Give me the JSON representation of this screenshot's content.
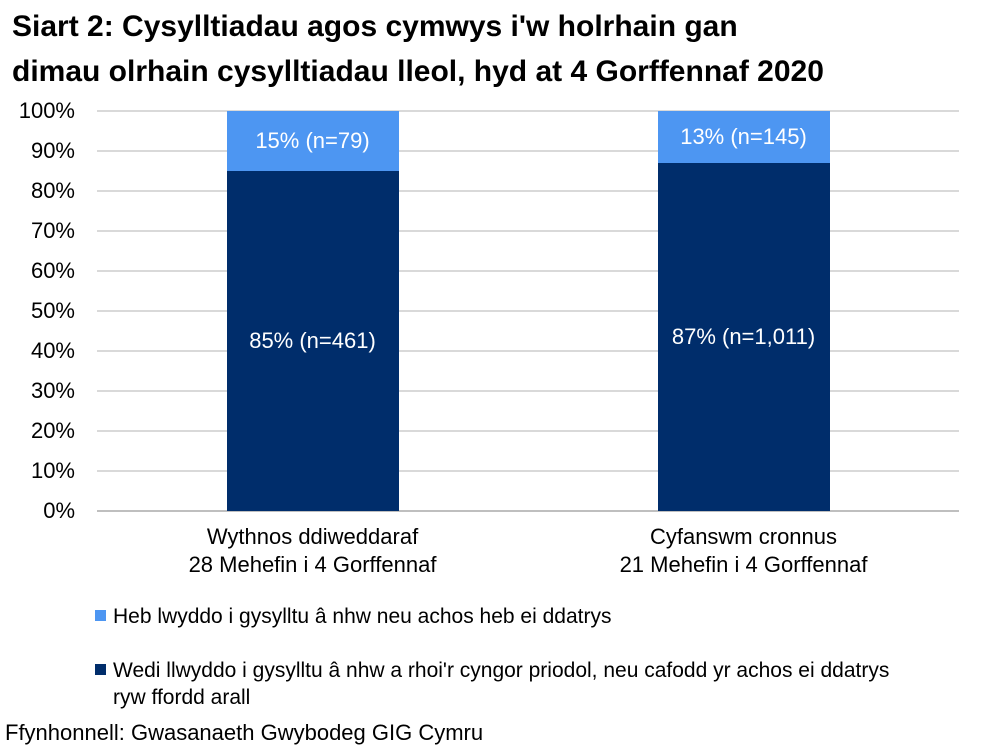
{
  "title_line1": "Siart 2: Cysylltiadau agos cymwys i'w holrhain gan",
  "title_line2": "dimau olrhain cysylltiadau lleol, hyd at 4 Gorffennaf 2020",
  "source": "Ffynhonnell: Gwasanaeth Gwybodeg GIG Cymru",
  "chart_data": {
    "type": "bar",
    "stacked": true,
    "title": "Siart 2: Cysylltiadau agos cymwys i'w holrhain gan dimau olrhain cysylltiadau lleol, hyd at 4 Gorffennaf 2020",
    "categories": [
      {
        "line1": "Wythnos ddiweddaraf",
        "line2": "28 Mehefin i 4 Gorffennaf"
      },
      {
        "line1": "Cyfanswm cronnus",
        "line2": "21 Mehefin i 4 Gorffennaf"
      }
    ],
    "series": [
      {
        "name": "Wedi llwyddo i gysylltu â nhw a rhoi'r cyngor priodol, neu cafodd yr achos ei ddatrys ryw ffordd arall",
        "color": "#002D6B",
        "values": [
          85,
          87
        ],
        "n": [
          461,
          1011
        ],
        "labels": [
          "85% (n=461)",
          "87% (n=1,011)"
        ]
      },
      {
        "name": "Heb lwyddo i gysylltu â nhw neu achos heb ei ddatrys",
        "color": "#4D96F2",
        "values": [
          15,
          13
        ],
        "n": [
          79,
          145
        ],
        "labels": [
          "15% (n=79)",
          "13% (n=145)"
        ]
      }
    ],
    "ylabel": "",
    "xlabel": "",
    "ylim": [
      0,
      100
    ],
    "ytick_step": 10,
    "ytick_labels": [
      "0%",
      "10%",
      "20%",
      "30%",
      "40%",
      "50%",
      "60%",
      "70%",
      "80%",
      "90%",
      "100%"
    ],
    "grid": true,
    "legend_position": "bottom-left",
    "legend_items": [
      {
        "label": "Heb lwyddo i gysylltu â nhw neu achos heb ei ddatrys",
        "color": "#4D96F2"
      },
      {
        "label": "Wedi llwyddo i gysylltu â nhw a rhoi'r cyngor priodol, neu cafodd yr achos ei ddatrys ryw ffordd arall",
        "color": "#002D6B"
      }
    ]
  }
}
